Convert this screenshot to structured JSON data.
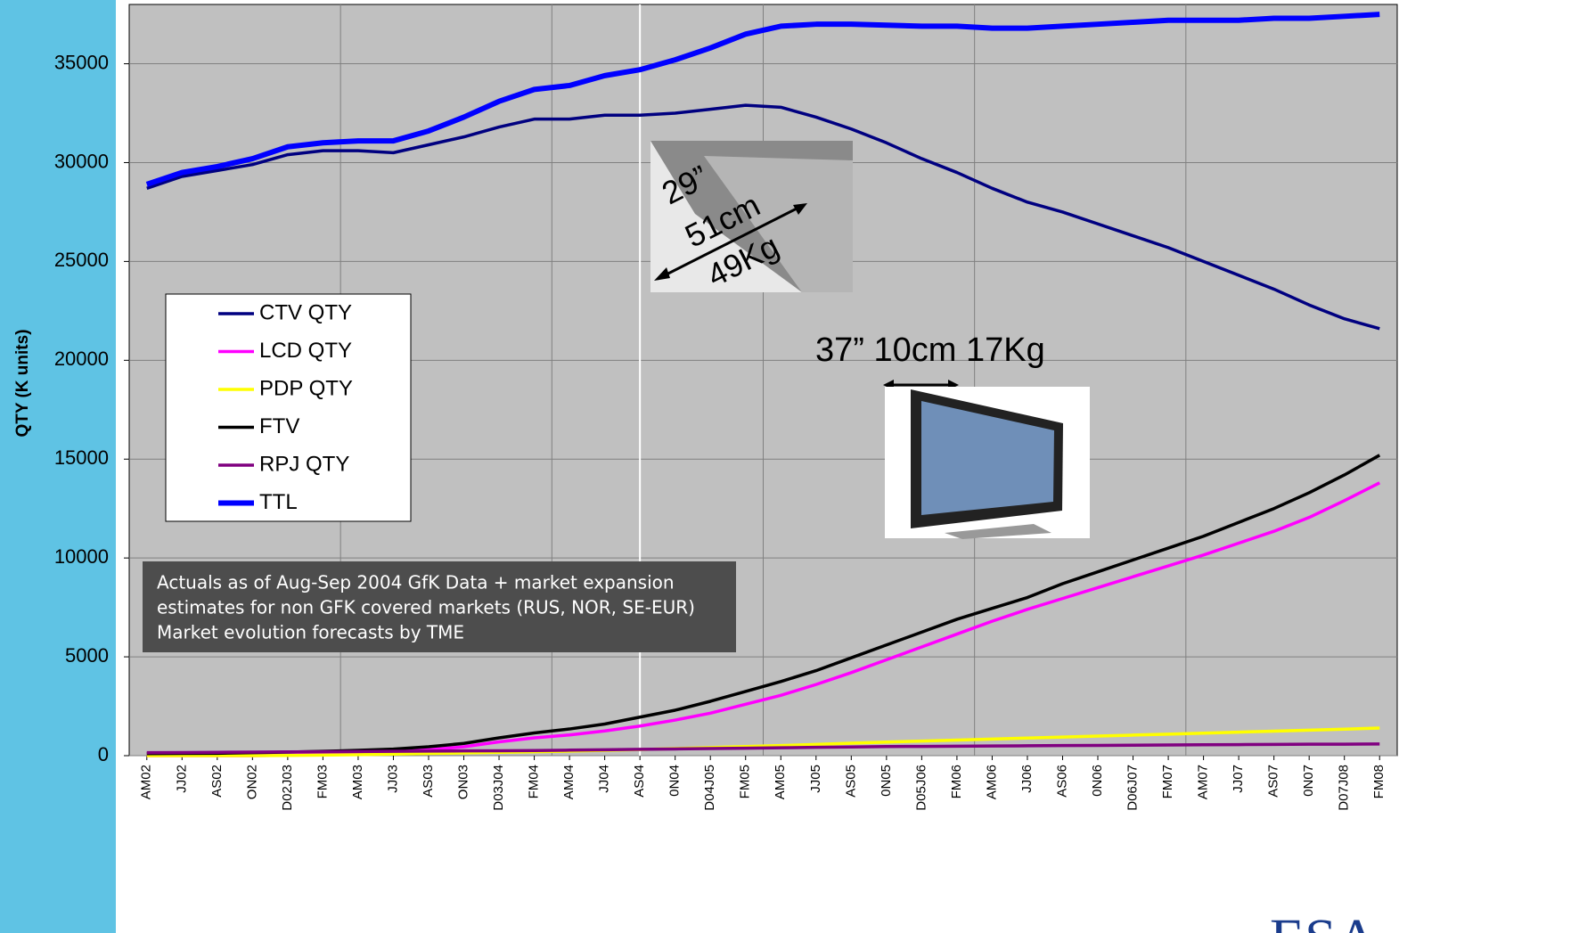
{
  "chart_data": {
    "type": "line",
    "y_label": "QTY (K units)",
    "categories": [
      "AM02",
      "JJ02",
      "AS02",
      "ON02",
      "D02J03",
      "FM03",
      "AM03",
      "JJ03",
      "AS03",
      "ON03",
      "D03J04",
      "FM04",
      "AM04",
      "JJ04",
      "AS04",
      "0N04",
      "D04J05",
      "FM05",
      "AM05",
      "JJ05",
      "AS05",
      "0N05",
      "D05J06",
      "FM06",
      "AM06",
      "JJ06",
      "AS06",
      "0N06",
      "D06J07",
      "FM07",
      "AM07",
      "JJ07",
      "AS07",
      "0N07",
      "D07J08",
      "FM08"
    ],
    "ylim": [
      0,
      38000
    ],
    "yticks": [
      0,
      5000,
      10000,
      15000,
      20000,
      25000,
      30000,
      35000
    ],
    "grid": true,
    "marker_category": "AS04",
    "series": [
      {
        "name": "CTV QTY",
        "color": "#000080",
        "values": [
          28700,
          29300,
          29600,
          29900,
          30400,
          30600,
          30600,
          30500,
          30900,
          31300,
          31800,
          32200,
          32200,
          32400,
          32400,
          32500,
          32700,
          32900,
          32800,
          32300,
          31700,
          31000,
          30200,
          29500,
          28700,
          28000,
          27500,
          26900,
          26300,
          25700,
          25000,
          24300,
          23600,
          22800,
          22100,
          21600
        ]
      },
      {
        "name": "LCD QTY",
        "color": "#ff00ff",
        "values": [
          0,
          0,
          0,
          0,
          20,
          50,
          100,
          180,
          300,
          450,
          700,
          900,
          1050,
          1250,
          1500,
          1800,
          2150,
          2600,
          3050,
          3600,
          4200,
          4850,
          5500,
          6150,
          6800,
          7400,
          7950,
          8500,
          9050,
          9600,
          10150,
          10750,
          11350,
          12050,
          12900,
          13800
        ]
      },
      {
        "name": "PDP QTY",
        "color": "#ffff00",
        "values": [
          0,
          0,
          0,
          0,
          10,
          30,
          50,
          80,
          110,
          140,
          170,
          200,
          230,
          270,
          310,
          360,
          410,
          460,
          510,
          570,
          630,
          690,
          740,
          790,
          840,
          890,
          940,
          990,
          1040,
          1090,
          1140,
          1190,
          1240,
          1290,
          1340,
          1400
        ]
      },
      {
        "name": "FTV",
        "color": "#000000",
        "values": [
          100,
          110,
          120,
          150,
          180,
          220,
          270,
          330,
          450,
          620,
          900,
          1150,
          1350,
          1600,
          1950,
          2300,
          2750,
          3250,
          3750,
          4300,
          4950,
          5600,
          6250,
          6900,
          7450,
          8000,
          8700,
          9300,
          9900,
          10500,
          11100,
          11800,
          12500,
          13300,
          14200,
          15200
        ]
      },
      {
        "name": "RPJ QTY",
        "color": "#800080",
        "values": [
          150,
          160,
          170,
          180,
          190,
          200,
          210,
          220,
          230,
          240,
          250,
          260,
          280,
          300,
          320,
          340,
          360,
          380,
          400,
          420,
          440,
          460,
          470,
          480,
          490,
          500,
          510,
          520,
          530,
          540,
          550,
          560,
          570,
          580,
          580,
          590
        ]
      },
      {
        "name": "TTL",
        "color": "#0000ff",
        "values": [
          28900,
          29500,
          29800,
          30200,
          30800,
          31000,
          31100,
          31100,
          31600,
          32300,
          33100,
          33700,
          33900,
          34400,
          34700,
          35200,
          35800,
          36500,
          36900,
          37000,
          37000,
          36950,
          36900,
          36900,
          36800,
          36800,
          36900,
          37000,
          37100,
          37200,
          37200,
          37200,
          37300,
          37300,
          37400,
          37500
        ]
      }
    ],
    "annotation": [
      "Actuals as of Aug-Sep 2004 GfK Data + market expansion",
      "estimates for non GFK covered markets (RUS, NOR, SE-EUR)",
      "Market evolution forecasts by TME"
    ],
    "crt_labels": [
      "29”",
      "51cm",
      "49Kg"
    ],
    "lcd_label": "37” 10cm 17Kg",
    "logo": "ESA"
  }
}
